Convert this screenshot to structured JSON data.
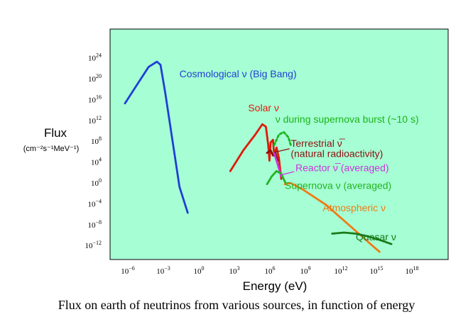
{
  "caption": "Flux on earth of neutrinos from various sources, in function of energy",
  "colors": {
    "plot_background": "#a6ffd4",
    "cosmological": "#1f3fd6",
    "solar": "#e01a0a",
    "supernova_burst": "#18b418",
    "terrestrial": "#8b1010",
    "reactor": "#cc33dd",
    "supernova_avg": "#22b322",
    "atmospheric": "#f07a14",
    "quasar": "#187a18"
  },
  "chart_data": {
    "type": "line",
    "title": "",
    "xlabel": "Energy (eV)",
    "ylabel": "Flux",
    "ylabel_units": "(cm⁻²s⁻¹MeV⁻¹)",
    "x_scale": "log",
    "y_scale": "log",
    "xlim_exp": [
      -7,
      20
    ],
    "ylim_exp": [
      -14,
      26
    ],
    "x_ticks": [
      {
        "base": "10",
        "exp": "−6",
        "value": -6
      },
      {
        "base": "10",
        "exp": "−3",
        "value": -3
      },
      {
        "base": "10",
        "exp": "0",
        "value": 0
      },
      {
        "base": "10",
        "exp": "3",
        "value": 3
      },
      {
        "base": "10",
        "exp": "6",
        "value": 6
      },
      {
        "base": "10",
        "exp": "9",
        "value": 9
      },
      {
        "base": "10",
        "exp": "12",
        "value": 12
      },
      {
        "base": "10",
        "exp": "15",
        "value": 15
      },
      {
        "base": "10",
        "exp": "18",
        "value": 18
      }
    ],
    "y_ticks": [
      {
        "base": "10",
        "exp": "24",
        "value": 24
      },
      {
        "base": "10",
        "exp": "20",
        "value": 20
      },
      {
        "base": "10",
        "exp": "16",
        "value": 16
      },
      {
        "base": "10",
        "exp": "12",
        "value": 12
      },
      {
        "base": "10",
        "exp": "8",
        "value": 8
      },
      {
        "base": "10",
        "exp": "4",
        "value": 4
      },
      {
        "base": "10",
        "exp": "0",
        "value": 0
      },
      {
        "base": "10",
        "exp": "−4",
        "value": -4
      },
      {
        "base": "10",
        "exp": "−8",
        "value": -8
      },
      {
        "base": "10",
        "exp": "−12",
        "value": -12
      }
    ],
    "grid": false,
    "series": [
      {
        "name": "Cosmological ν (Big Bang)",
        "color_key": "cosmological",
        "dashed": false,
        "points": [
          [
            -6.0,
            15.0
          ],
          [
            -5.0,
            18.5
          ],
          [
            -4.0,
            22.0
          ],
          [
            -3.3,
            23.0
          ],
          [
            -3.0,
            22.4
          ],
          [
            -2.6,
            17.0
          ],
          [
            -2.0,
            8.0
          ],
          [
            -1.4,
            -1.0
          ],
          [
            -0.7,
            -6.0
          ]
        ]
      },
      {
        "name": "Solar ν",
        "color_key": "solar",
        "dashed": false,
        "points": [
          [
            2.9,
            2.0
          ],
          [
            4.0,
            6.0
          ],
          [
            5.0,
            9.0
          ],
          [
            5.6,
            11.0
          ],
          [
            5.9,
            10.5
          ],
          [
            6.1,
            7.0
          ],
          [
            6.2,
            4.0
          ],
          [
            6.3,
            7.5
          ],
          [
            6.5,
            8.0
          ],
          [
            6.6,
            5.0
          ],
          [
            6.8,
            6.5
          ],
          [
            7.0,
            4.5
          ],
          [
            7.2,
            0.5
          ]
        ]
      },
      {
        "name": "ν during supernova burst (~10 s)",
        "color_key": "supernova_burst",
        "dashed": true,
        "points": [
          [
            6.6,
            7.0
          ],
          [
            7.0,
            9.0
          ],
          [
            7.4,
            9.5
          ],
          [
            7.8,
            8.5
          ],
          [
            8.0,
            7.0
          ]
        ]
      },
      {
        "name": "Terrestrial ν̅ (natural radioactivity)",
        "color_key": "terrestrial",
        "dashed": false,
        "points": [
          [
            6.0,
            5.5
          ],
          [
            6.3,
            6.0
          ],
          [
            6.5,
            5.0
          ],
          [
            6.7,
            5.5
          ],
          [
            6.9,
            4.0
          ]
        ]
      },
      {
        "name": "Reactor ν̅ (averaged)",
        "color_key": "reactor",
        "dashed": false,
        "points": [
          [
            6.6,
            5.5
          ],
          [
            6.8,
            4.0
          ],
          [
            7.0,
            2.5
          ],
          [
            7.2,
            1.0
          ]
        ]
      },
      {
        "name": "Supernova ν (averaged)",
        "color_key": "supernova_avg",
        "dashed": false,
        "points": [
          [
            6.0,
            -0.5
          ],
          [
            6.4,
            1.0
          ],
          [
            6.8,
            2.0
          ],
          [
            7.2,
            1.5
          ],
          [
            7.6,
            -0.5
          ]
        ]
      },
      {
        "name": "Atmospheric ν",
        "color_key": "atmospheric",
        "dashed": false,
        "points": [
          [
            7.5,
            -0.5
          ],
          [
            8.0,
            -0.3
          ],
          [
            9.0,
            -1.5
          ],
          [
            10.0,
            -3.0
          ],
          [
            11.0,
            -4.5
          ],
          [
            12.0,
            -6.5
          ],
          [
            13.0,
            -8.5
          ],
          [
            14.0,
            -10.5
          ],
          [
            15.0,
            -12.5
          ],
          [
            15.5,
            -13.5
          ]
        ]
      },
      {
        "name": "Quasar ν",
        "color_key": "quasar",
        "dashed": false,
        "points": [
          [
            11.5,
            -10.0
          ],
          [
            12.5,
            -9.8
          ],
          [
            13.5,
            -10.0
          ],
          [
            14.5,
            -10.5
          ],
          [
            15.5,
            -11.2
          ],
          [
            16.5,
            -12.0
          ]
        ]
      }
    ],
    "series_labels": [
      {
        "text": "Cosmological ν (Big Bang)",
        "color_key": "cosmological",
        "x": -1.4,
        "y": 20.0
      },
      {
        "text": "Solar ν",
        "color_key": "solar",
        "x": 4.4,
        "y": 13.5
      },
      {
        "text": "ν during supernova burst (~10 s)",
        "color_key": "supernova_burst",
        "x": 6.7,
        "y": 11.3
      },
      {
        "text": "Terrestrial ν̅",
        "color_key": "terrestrial",
        "x": 8.0,
        "y": 6.7
      },
      {
        "text": "(natural radioactivity)",
        "color_key": "terrestrial",
        "x": 8.0,
        "y": 4.7
      },
      {
        "text": "Reactor ν̅ (averaged)",
        "color_key": "reactor",
        "x": 8.4,
        "y": 2.0
      },
      {
        "text": "Supernova ν (averaged)",
        "color_key": "supernova_avg",
        "x": 7.5,
        "y": -1.4
      },
      {
        "text": "Atmospheric ν",
        "color_key": "atmospheric",
        "x": 10.7,
        "y": -5.7
      },
      {
        "text": "Quasar ν",
        "color_key": "quasar",
        "x": 13.5,
        "y": -11.3
      }
    ],
    "annotations": [
      {
        "name": "terrestrial-leader",
        "color_key": "terrestrial",
        "from": [
          7.9,
          6.3
        ],
        "to": [
          6.6,
          5.6
        ]
      },
      {
        "name": "reactor-leader",
        "color_key": "reactor",
        "from": [
          8.3,
          1.9
        ],
        "to": [
          7.1,
          1.2
        ]
      }
    ]
  }
}
